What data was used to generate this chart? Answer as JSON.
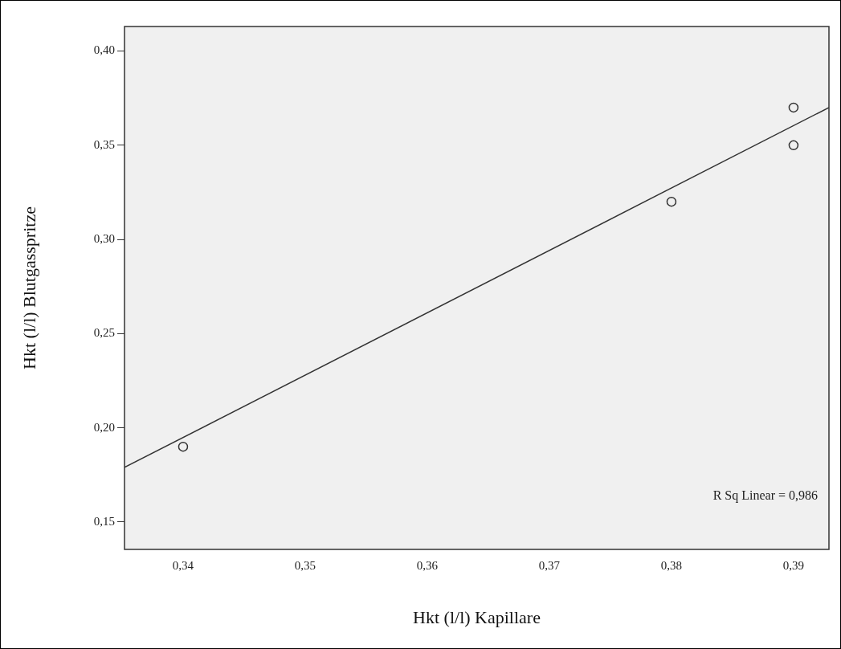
{
  "chart_data": {
    "type": "scatter",
    "xlabel": "Hkt (l/l) Kapillare",
    "ylabel": "Hkt (l/l) Blutgasspritze",
    "series": [
      {
        "color": "#333333",
        "x": [
          0.34,
          0.38,
          0.39,
          0.39
        ],
        "values": [
          0.19,
          0.32,
          0.37,
          0.35
        ],
        "marker": "circle"
      },
      {
        "type": "line",
        "color": "#333333",
        "x": [
          0.3352,
          0.3929
        ],
        "values": [
          0.179,
          0.37
        ],
        "marker": "none",
        "line_style": "solid"
      }
    ],
    "xlim": [
      0.3352,
      0.3929
    ],
    "ylim": [
      0.1355,
      0.413
    ],
    "xticks": [
      {
        "value": 0.34,
        "label": "0,34"
      },
      {
        "value": 0.35,
        "label": "0,35"
      },
      {
        "value": 0.36,
        "label": "0,36"
      },
      {
        "value": 0.37,
        "label": "0,37"
      },
      {
        "value": 0.38,
        "label": "0,38"
      },
      {
        "value": 0.39,
        "label": "0,39"
      }
    ],
    "yticks": [
      {
        "value": 0.15,
        "label": "0,15"
      },
      {
        "value": 0.2,
        "label": "0,20"
      },
      {
        "value": 0.25,
        "label": "0,25"
      },
      {
        "value": 0.3,
        "label": "0,30"
      },
      {
        "value": 0.35,
        "label": "0,35"
      },
      {
        "value": 0.4,
        "label": "0,40"
      }
    ],
    "annotations": [
      "R Sq Linear = 0,986"
    ],
    "grid": false,
    "legend": false
  }
}
